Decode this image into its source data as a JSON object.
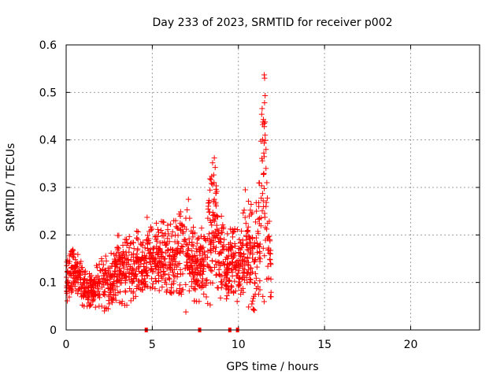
{
  "chart_data": {
    "type": "scatter",
    "title": "Day 233 of 2023, SRMTID for receiver p002",
    "xlabel": "GPS time / hours",
    "ylabel": "SRMTID / TECUs",
    "xlim": [
      0,
      24
    ],
    "ylim": [
      0,
      0.6
    ],
    "x_ticks": [
      0,
      5,
      10,
      15,
      20
    ],
    "y_ticks": [
      0,
      0.1,
      0.2,
      0.3,
      0.4,
      0.5,
      0.6
    ],
    "x_tick_labels": [
      "0",
      "5",
      "10",
      "15",
      "20"
    ],
    "y_tick_labels": [
      "0",
      "0.1",
      "0.2",
      "0.3",
      "0.4",
      "0.5",
      "0.6"
    ],
    "grid": true,
    "marker": "+",
    "series_color": "#ff0000",
    "data_time_range_hours": [
      0,
      11.9
    ],
    "envelope": [
      {
        "x": 0.0,
        "low": 0.06,
        "high": 0.14
      },
      {
        "x": 0.5,
        "low": 0.07,
        "high": 0.18
      },
      {
        "x": 1.0,
        "low": 0.05,
        "high": 0.13
      },
      {
        "x": 1.5,
        "low": 0.05,
        "high": 0.12
      },
      {
        "x": 2.0,
        "low": 0.04,
        "high": 0.15
      },
      {
        "x": 2.5,
        "low": 0.04,
        "high": 0.16
      },
      {
        "x": 3.0,
        "low": 0.06,
        "high": 0.2
      },
      {
        "x": 3.5,
        "low": 0.05,
        "high": 0.19
      },
      {
        "x": 4.0,
        "low": 0.07,
        "high": 0.21
      },
      {
        "x": 4.5,
        "low": 0.08,
        "high": 0.2
      },
      {
        "x": 5.0,
        "low": 0.09,
        "high": 0.22
      },
      {
        "x": 5.5,
        "low": 0.08,
        "high": 0.23
      },
      {
        "x": 6.0,
        "low": 0.08,
        "high": 0.22
      },
      {
        "x": 6.5,
        "low": 0.07,
        "high": 0.24
      },
      {
        "x": 7.0,
        "low": 0.07,
        "high": 0.27
      },
      {
        "x": 7.5,
        "low": 0.06,
        "high": 0.2
      },
      {
        "x": 8.0,
        "low": 0.06,
        "high": 0.22
      },
      {
        "x": 8.5,
        "low": 0.05,
        "high": 0.36
      },
      {
        "x": 9.0,
        "low": 0.06,
        "high": 0.24
      },
      {
        "x": 9.5,
        "low": 0.06,
        "high": 0.22
      },
      {
        "x": 10.0,
        "low": 0.06,
        "high": 0.21
      },
      {
        "x": 10.5,
        "low": 0.05,
        "high": 0.29
      },
      {
        "x": 11.0,
        "low": 0.04,
        "high": 0.25
      },
      {
        "x": 11.5,
        "low": 0.06,
        "high": 0.54
      },
      {
        "x": 11.9,
        "low": 0.07,
        "high": 0.14
      }
    ],
    "spikes": [
      {
        "x": 4.7,
        "y": 0.237
      },
      {
        "x": 7.1,
        "y": 0.275
      },
      {
        "x": 8.6,
        "y": 0.362
      },
      {
        "x": 8.65,
        "y": 0.342
      },
      {
        "x": 8.7,
        "y": 0.296
      },
      {
        "x": 10.4,
        "y": 0.295
      },
      {
        "x": 11.5,
        "y": 0.537
      },
      {
        "x": 11.52,
        "y": 0.53
      },
      {
        "x": 11.55,
        "y": 0.493
      },
      {
        "x": 11.45,
        "y": 0.443
      },
      {
        "x": 11.5,
        "y": 0.435
      },
      {
        "x": 11.55,
        "y": 0.41
      },
      {
        "x": 11.6,
        "y": 0.38
      },
      {
        "x": 11.6,
        "y": 0.34
      },
      {
        "x": 11.65,
        "y": 0.31
      },
      {
        "x": 11.6,
        "y": 0.26
      },
      {
        "x": 6.95,
        "y": 0.038
      }
    ],
    "baseline_markers_x": [
      4.65,
      7.75,
      9.5,
      9.95
    ]
  }
}
